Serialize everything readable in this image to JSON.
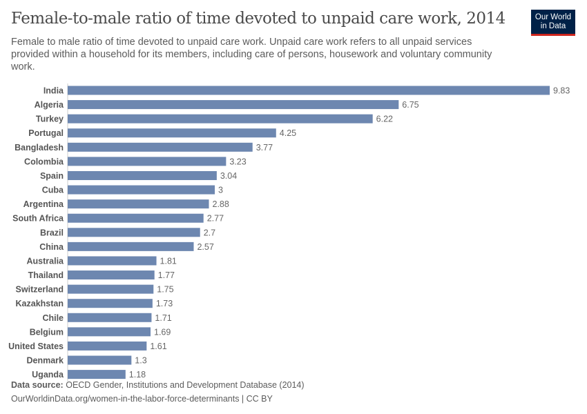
{
  "header": {
    "title": "Female-to-male ratio of time devoted to unpaid care work, 2014",
    "subtitle": "Female to male ratio of time devoted to unpaid care work. Unpaid care work refers to all unpaid services provided within a household for its members, including care of persons, housework and voluntary community work.",
    "logo": [
      "Our World",
      "in Data"
    ]
  },
  "footer": {
    "source_label": "Data source:",
    "source": "OECD Gender, Institutions and Development Database (2014)",
    "url": "OurWorldinData.org/women-in-the-labor-force-determinants | CC BY"
  },
  "chart_data": {
    "type": "bar",
    "orientation": "horizontal",
    "title": "Female-to-male ratio of time devoted to unpaid care work, 2014",
    "categories": [
      "India",
      "Algeria",
      "Turkey",
      "Portugal",
      "Bangladesh",
      "Colombia",
      "Spain",
      "Cuba",
      "Argentina",
      "South Africa",
      "Brazil",
      "China",
      "Australia",
      "Thailand",
      "Switzerland",
      "Kazakhstan",
      "Chile",
      "Belgium",
      "United States",
      "Denmark",
      "Uganda"
    ],
    "values": [
      9.83,
      6.75,
      6.22,
      4.25,
      3.77,
      3.23,
      3.04,
      3,
      2.88,
      2.77,
      2.7,
      2.57,
      1.81,
      1.77,
      1.75,
      1.73,
      1.71,
      1.69,
      1.61,
      1.3,
      1.18
    ],
    "xlim": [
      0,
      9.83
    ],
    "grid": false,
    "bar_color": "#6d87b0"
  }
}
